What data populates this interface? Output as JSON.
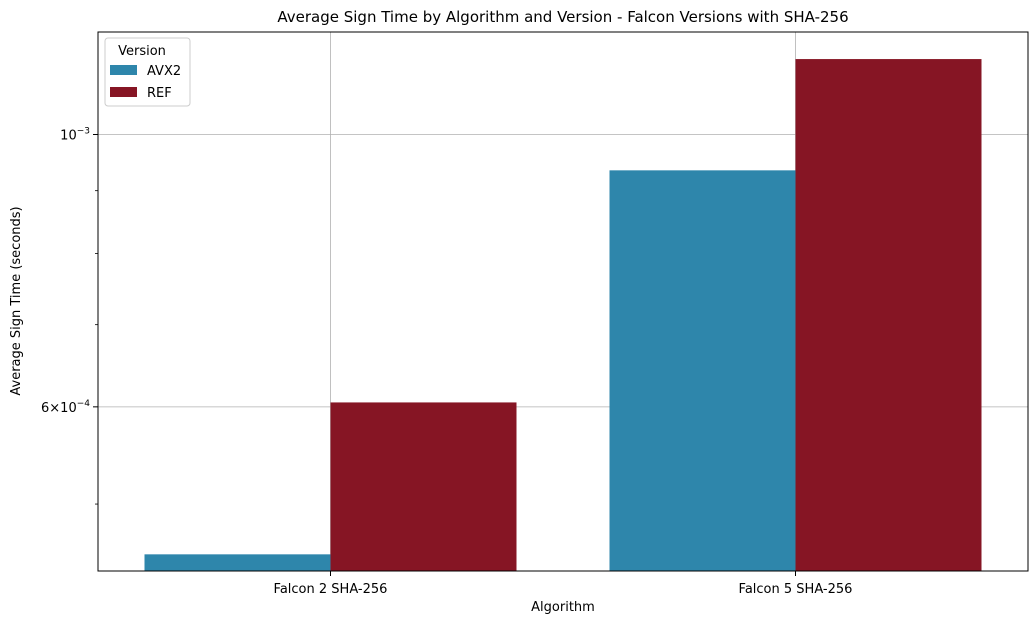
{
  "chart_data": {
    "type": "bar",
    "title": "Average Sign Time by Algorithm and Version - Falcon Versions with SHA-256",
    "xlabel": "Algorithm",
    "ylabel": "Average Sign Time (seconds)",
    "y_scale": "log",
    "ylim": [
      0.000441,
      0.001212
    ],
    "categories": [
      "Falcon 2 SHA-256",
      "Falcon 5 SHA-256"
    ],
    "series": [
      {
        "name": "AVX2",
        "values": [
          0.000455,
          0.000935
        ],
        "color": "#2e86ab"
      },
      {
        "name": "REF",
        "values": [
          0.000605,
          0.001152
        ],
        "color": "#861524"
      }
    ],
    "y_ticks": [
      {
        "value": 0.001,
        "base": "10",
        "exp": "−3",
        "label": "10^-3"
      },
      {
        "value": 0.0006,
        "mantissa": "6",
        "base": "10",
        "exp": "−4",
        "label": "6×10^-4"
      }
    ],
    "y_minor_ticks": [
      0.0005,
      0.0007,
      0.0008,
      0.0009
    ],
    "legend": {
      "title": "Version",
      "placement": "top-left"
    },
    "grid": true
  }
}
